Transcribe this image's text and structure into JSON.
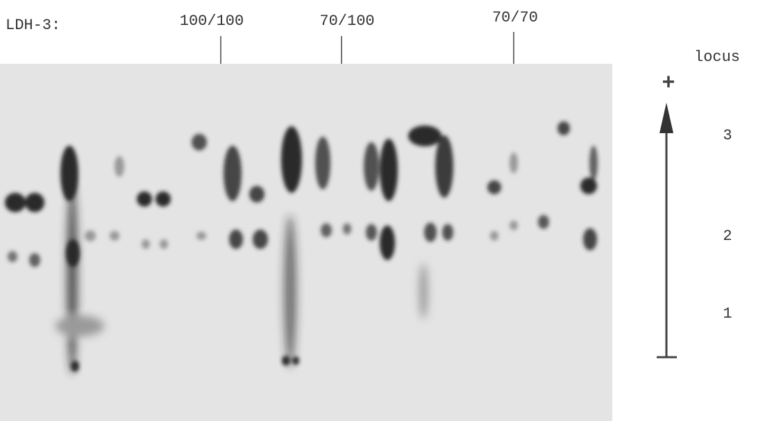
{
  "header": {
    "label": "LDH-3:",
    "lanes": [
      "100/100",
      "70/100",
      "70/70"
    ]
  },
  "legend": {
    "title": "locus",
    "direction": "+",
    "loci": [
      "3",
      "2",
      "1"
    ]
  }
}
